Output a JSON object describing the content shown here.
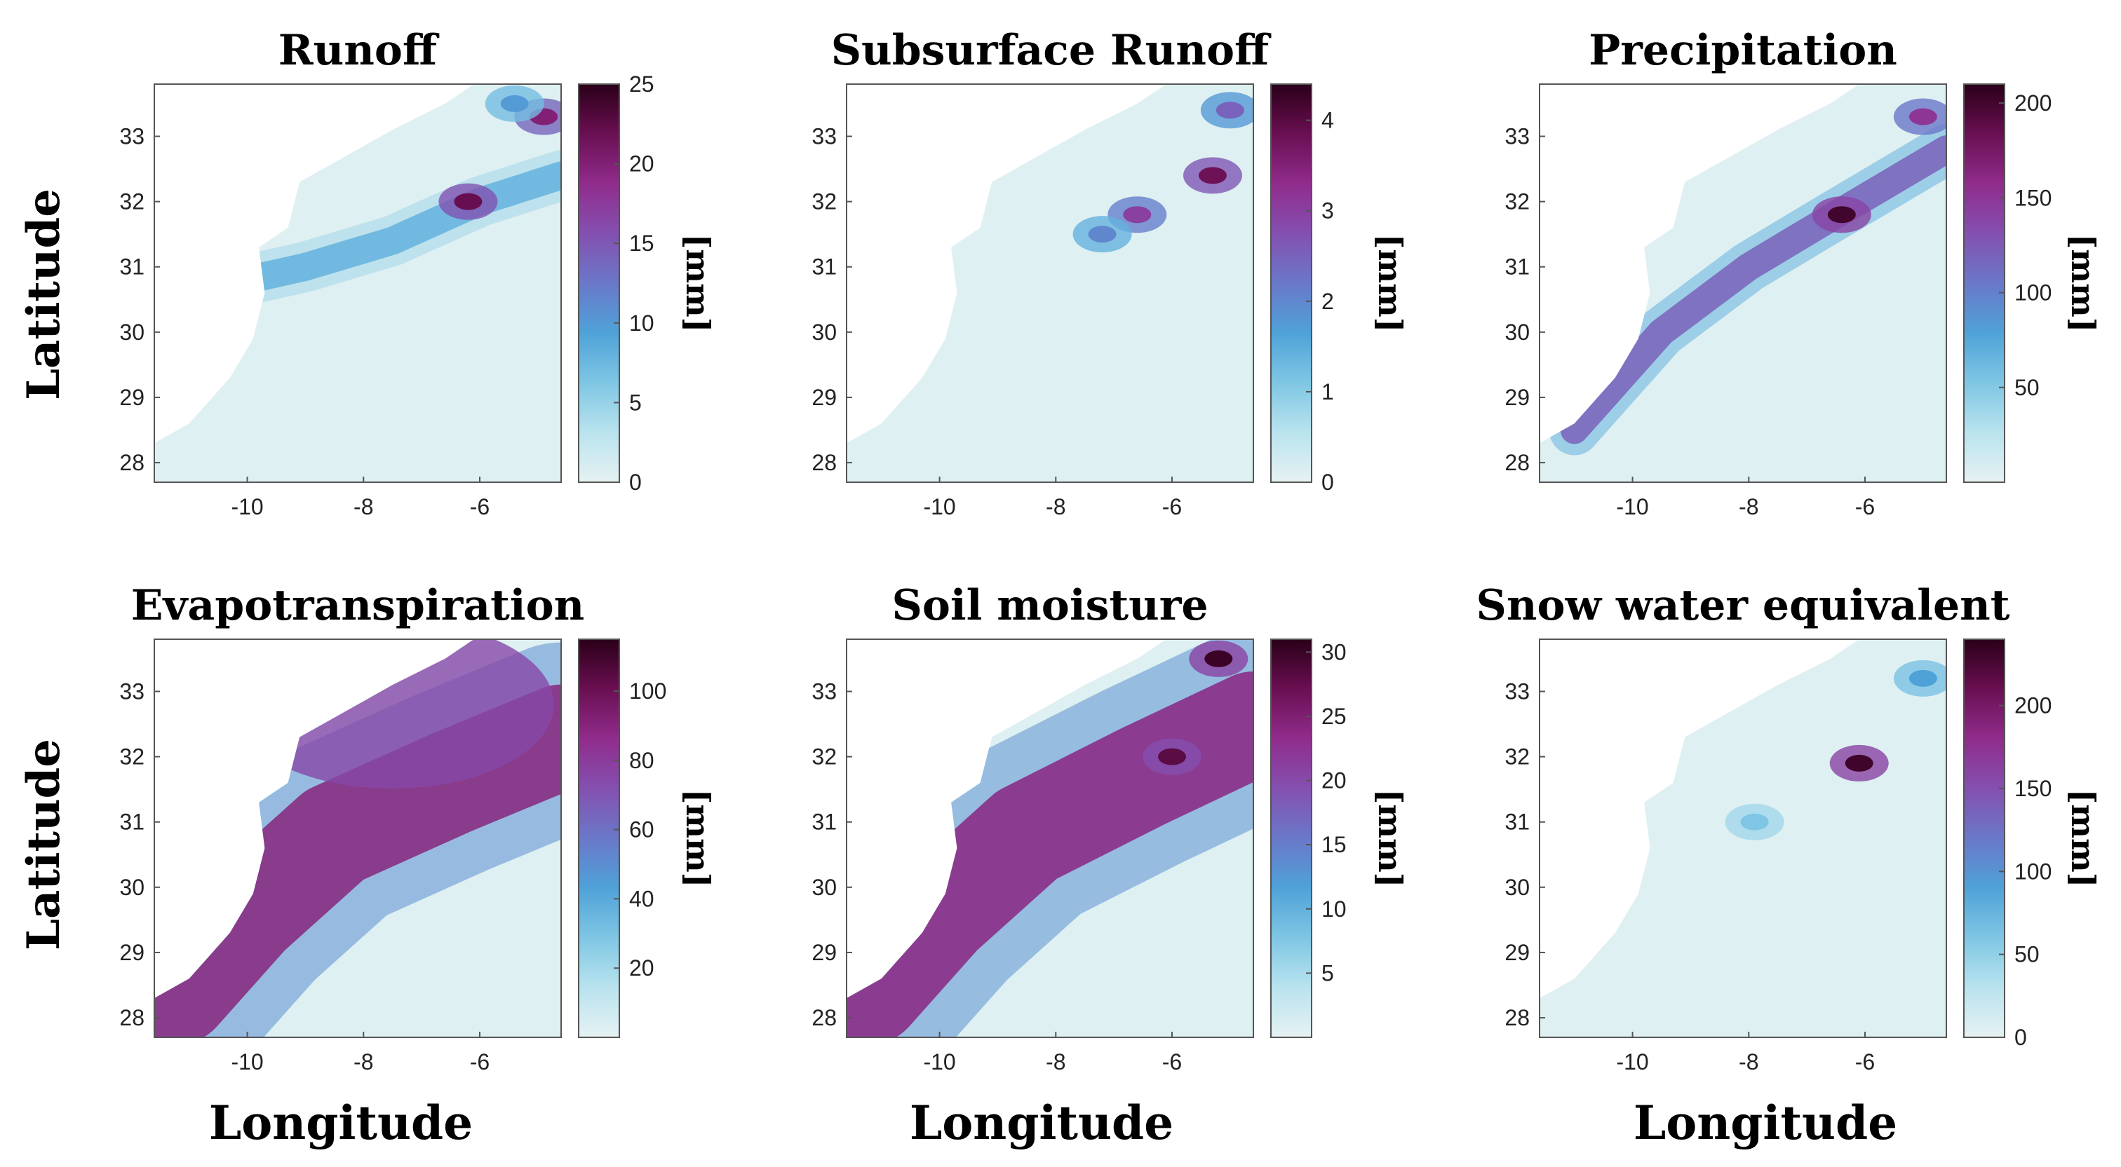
{
  "figure": {
    "y_axis_label": "Latitude",
    "x_axis_label": "Longitude"
  },
  "colormap": [
    "#e6f2f3",
    "#b9e3ee",
    "#7fc6e4",
    "#4fa2d8",
    "#6a78c8",
    "#8450b0",
    "#902c8c",
    "#6a0f52",
    "#2a0018"
  ],
  "chart_data": [
    {
      "type": "heatmap",
      "title": "Runoff",
      "xlabel": "",
      "ylabel": "Latitude",
      "xlim": [
        -11.6,
        -4.6
      ],
      "ylim": [
        27.7,
        33.8
      ],
      "x_ticks": [
        -10,
        -8,
        -6
      ],
      "y_ticks": [
        28,
        29,
        30,
        31,
        32,
        33
      ],
      "colorbar": {
        "label": "[mm]",
        "range": [
          0,
          25
        ],
        "ticks": [
          0,
          5,
          10,
          15,
          20,
          25
        ]
      },
      "features": [
        {
          "kind": "ridge",
          "path": [
            [
              -11.0,
              30.6
            ],
            [
              -9.0,
              31.0
            ],
            [
              -7.5,
              31.4
            ],
            [
              -6.0,
              32.0
            ],
            [
              -4.6,
              32.4
            ]
          ],
          "value": 8
        },
        {
          "kind": "hotspot",
          "center": [
            -6.2,
            32.0
          ],
          "value": 22
        },
        {
          "kind": "hotspot",
          "center": [
            -4.9,
            33.3
          ],
          "value": 20
        },
        {
          "kind": "hotspot",
          "center": [
            -5.4,
            33.5
          ],
          "value": 10
        }
      ]
    },
    {
      "type": "heatmap",
      "title": "Subsurface Runoff",
      "xlabel": "",
      "ylabel": "",
      "xlim": [
        -11.6,
        -4.6
      ],
      "ylim": [
        27.7,
        33.8
      ],
      "x_ticks": [
        -10,
        -8,
        -6
      ],
      "y_ticks": [
        28,
        29,
        30,
        31,
        32,
        33
      ],
      "colorbar": {
        "label": "[mm]",
        "range": [
          0,
          4.4
        ],
        "ticks": [
          0,
          1,
          2,
          3,
          4
        ]
      },
      "features": [
        {
          "kind": "hotspot",
          "center": [
            -5.3,
            32.4
          ],
          "value": 3.8
        },
        {
          "kind": "hotspot",
          "center": [
            -6.6,
            31.8
          ],
          "value": 3.0
        },
        {
          "kind": "hotspot",
          "center": [
            -5.0,
            33.4
          ],
          "value": 2.5
        },
        {
          "kind": "hotspot",
          "center": [
            -7.2,
            31.5
          ],
          "value": 2.0
        }
      ]
    },
    {
      "type": "heatmap",
      "title": "Precipitation",
      "xlabel": "",
      "ylabel": "",
      "xlim": [
        -11.6,
        -4.6
      ],
      "ylim": [
        27.7,
        33.8
      ],
      "x_ticks": [
        -10,
        -8,
        -6
      ],
      "y_ticks": [
        28,
        29,
        30,
        31,
        32,
        33
      ],
      "colorbar": {
        "label": "[mm]",
        "range": [
          0,
          210
        ],
        "ticks": [
          50,
          100,
          150,
          200
        ]
      },
      "features": [
        {
          "kind": "ridge",
          "path": [
            [
              -11.0,
              28.5
            ],
            [
              -9.5,
              30.0
            ],
            [
              -8.0,
              31.0
            ],
            [
              -6.5,
              31.8
            ],
            [
              -4.6,
              32.8
            ]
          ],
          "value": 120
        },
        {
          "kind": "hotspot",
          "center": [
            -6.4,
            31.8
          ],
          "value": 200
        },
        {
          "kind": "hotspot",
          "center": [
            -5.0,
            33.3
          ],
          "value": 150
        }
      ]
    },
    {
      "type": "heatmap",
      "title": "Evapotranspiration",
      "xlabel": "Longitude",
      "ylabel": "Latitude",
      "xlim": [
        -11.6,
        -4.6
      ],
      "ylim": [
        27.7,
        33.8
      ],
      "x_ticks": [
        -10,
        -8,
        -6
      ],
      "y_ticks": [
        28,
        29,
        30,
        31,
        32,
        33
      ],
      "colorbar": {
        "label": "[mm]",
        "range": [
          0,
          115
        ],
        "ticks": [
          20,
          40,
          60,
          80,
          100
        ]
      },
      "features": [
        {
          "kind": "band",
          "path": [
            [
              -11.2,
              28.4
            ],
            [
              -10.0,
              29.6
            ],
            [
              -8.5,
              30.8
            ],
            [
              -6.5,
              31.6
            ],
            [
              -4.6,
              32.3
            ]
          ],
          "value": 90
        },
        {
          "kind": "region",
          "center": [
            -7.5,
            32.8
          ],
          "value": 75
        }
      ]
    },
    {
      "type": "heatmap",
      "title": "Soil moisture",
      "xlabel": "Longitude",
      "ylabel": "",
      "xlim": [
        -11.6,
        -4.6
      ],
      "ylim": [
        27.7,
        33.8
      ],
      "x_ticks": [
        -10,
        -8,
        -6
      ],
      "y_ticks": [
        28,
        29,
        30,
        31,
        32,
        33
      ],
      "colorbar": {
        "label": "[mm]",
        "range": [
          0,
          31
        ],
        "ticks": [
          5,
          10,
          15,
          20,
          25,
          30
        ]
      },
      "features": [
        {
          "kind": "band",
          "path": [
            [
              -11.2,
              28.4
            ],
            [
              -10.0,
              29.6
            ],
            [
              -8.5,
              30.8
            ],
            [
              -6.5,
              31.7
            ],
            [
              -4.6,
              32.5
            ]
          ],
          "value": 24
        },
        {
          "kind": "hotspot",
          "center": [
            -5.2,
            33.5
          ],
          "value": 30
        },
        {
          "kind": "hotspot",
          "center": [
            -6.0,
            32.0
          ],
          "value": 28
        }
      ]
    },
    {
      "type": "heatmap",
      "title": "Snow water equivalent",
      "xlabel": "Longitude",
      "ylabel": "",
      "xlim": [
        -11.6,
        -4.6
      ],
      "ylim": [
        27.7,
        33.8
      ],
      "x_ticks": [
        -10,
        -8,
        -6
      ],
      "y_ticks": [
        28,
        29,
        30,
        31,
        32,
        33
      ],
      "colorbar": {
        "label": "[mm]",
        "range": [
          0,
          240
        ],
        "ticks": [
          0,
          50,
          100,
          150,
          200
        ]
      },
      "features": [
        {
          "kind": "hotspot",
          "center": [
            -6.1,
            31.9
          ],
          "value": 230
        },
        {
          "kind": "hotspot",
          "center": [
            -5.0,
            33.2
          ],
          "value": 90
        },
        {
          "kind": "hotspot",
          "center": [
            -7.9,
            31.0
          ],
          "value": 60
        }
      ]
    }
  ]
}
